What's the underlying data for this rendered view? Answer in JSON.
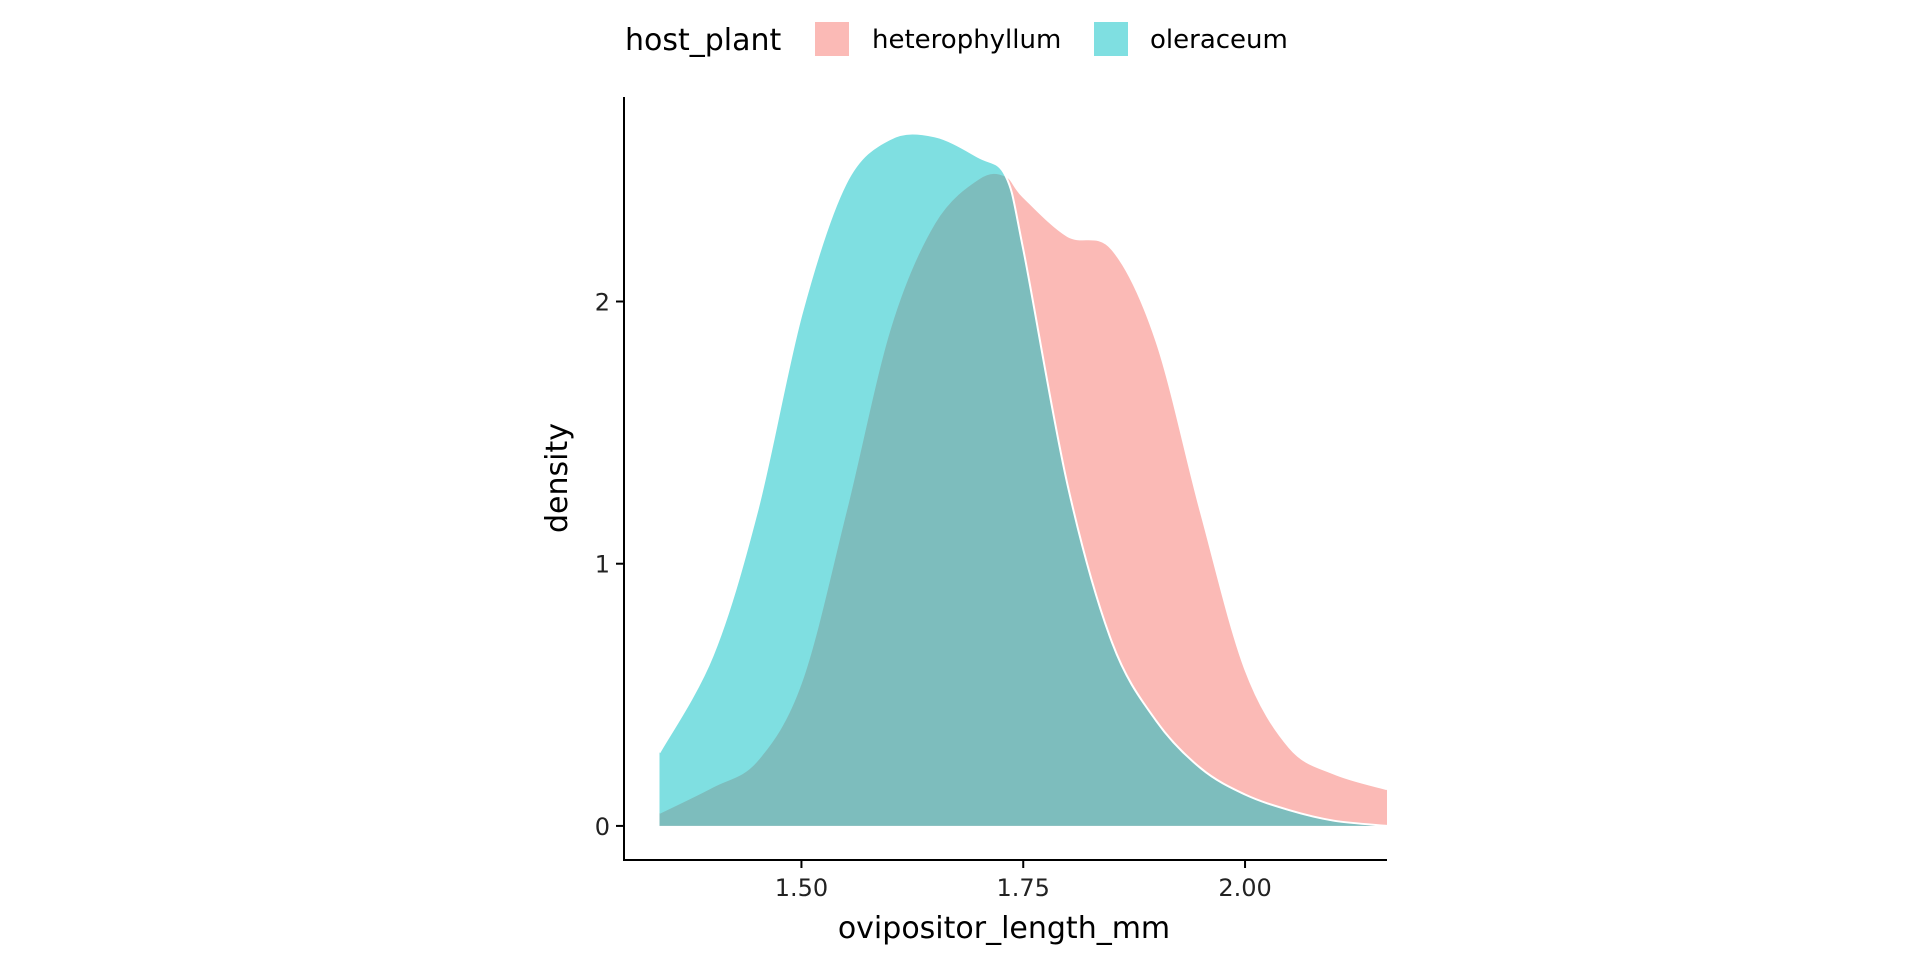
{
  "chart_data": {
    "type": "area",
    "subtype": "density",
    "xlabel": "ovipositor_length_mm",
    "ylabel": "density",
    "xlim": [
      1.3,
      2.16
    ],
    "ylim": [
      -0.13,
      2.78
    ],
    "x_ticks": [
      1.5,
      1.75,
      2.0
    ],
    "x_tick_labels": [
      "1.50",
      "1.75",
      "2.00"
    ],
    "y_ticks": [
      0,
      1,
      2
    ],
    "y_tick_labels": [
      "0",
      "1",
      "2"
    ],
    "grid": false,
    "legend": {
      "title": "host_plant",
      "position": "top",
      "entries": [
        "heterophyllum",
        "oleraceum"
      ]
    },
    "series": [
      {
        "name": "heterophyllum",
        "color": "#F8766D",
        "alpha": 0.5,
        "x": [
          1.34,
          1.4,
          1.45,
          1.5,
          1.55,
          1.6,
          1.65,
          1.7,
          1.73,
          1.75,
          1.8,
          1.85,
          1.9,
          1.95,
          2.0,
          2.05,
          2.1,
          2.16
        ],
        "y": [
          0.05,
          0.15,
          0.25,
          0.55,
          1.2,
          1.9,
          2.3,
          2.47,
          2.48,
          2.4,
          2.25,
          2.2,
          1.85,
          1.2,
          0.6,
          0.3,
          0.2,
          0.14
        ]
      },
      {
        "name": "oleraceum",
        "color": "#00BFC4",
        "alpha": 0.5,
        "x": [
          1.34,
          1.4,
          1.45,
          1.5,
          1.55,
          1.6,
          1.65,
          1.7,
          1.73,
          1.75,
          1.8,
          1.85,
          1.9,
          1.95,
          2.0,
          2.05,
          2.1,
          2.16
        ],
        "y": [
          0.28,
          0.65,
          1.2,
          1.95,
          2.45,
          2.62,
          2.63,
          2.55,
          2.48,
          2.2,
          1.3,
          0.7,
          0.4,
          0.22,
          0.12,
          0.06,
          0.02,
          0.0
        ]
      }
    ]
  }
}
